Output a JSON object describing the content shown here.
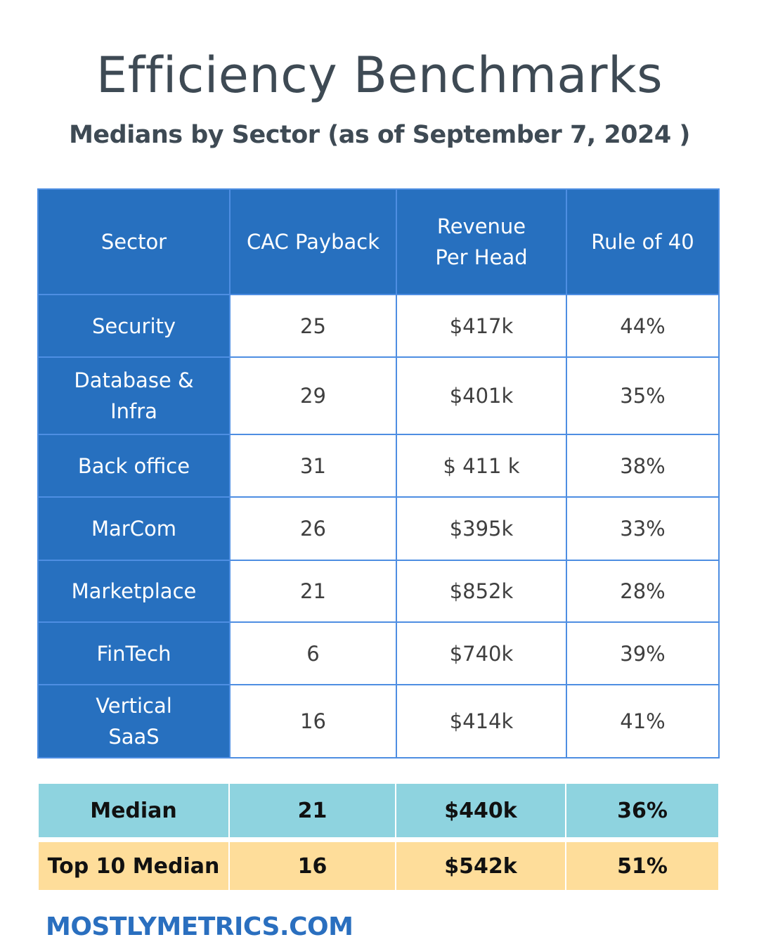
{
  "title": "Efficiency Benchmarks",
  "subtitle": "Medians by Sector (as of September 7, 2024 )",
  "footer": "MOSTLYMETRICS.COM",
  "colors": {
    "header_blue": "#2770bf",
    "grid_blue": "#4e8ee2",
    "median_row": "#8ed3df",
    "top10_row": "#fedd9a",
    "footer_text": "#2a6fbf"
  },
  "chart_data": {
    "type": "table",
    "columns": [
      "Sector",
      "CAC Payback",
      "Revenue Per Head",
      "Rule of 40"
    ],
    "rows": [
      {
        "sector": "Security",
        "cac_payback": "25",
        "revenue_per_head": "$417k",
        "rule_of_40": "44%"
      },
      {
        "sector": "Database & Infra",
        "cac_payback": "29",
        "revenue_per_head": "$401k",
        "rule_of_40": "35%"
      },
      {
        "sector": "Back office",
        "cac_payback": "31",
        "revenue_per_head": "$ 411 k",
        "rule_of_40": "38%"
      },
      {
        "sector": "MarCom",
        "cac_payback": "26",
        "revenue_per_head": "$395k",
        "rule_of_40": "33%"
      },
      {
        "sector": "Marketplace",
        "cac_payback": "21",
        "revenue_per_head": "$852k",
        "rule_of_40": "28%"
      },
      {
        "sector": "FinTech",
        "cac_payback": "6",
        "revenue_per_head": "$740k",
        "rule_of_40": "39%"
      },
      {
        "sector": "Vertical SaaS",
        "cac_payback": "16",
        "revenue_per_head": "$414k",
        "rule_of_40": "41%"
      }
    ],
    "summary": [
      {
        "label": "Median",
        "cac_payback": "21",
        "revenue_per_head": "$440k",
        "rule_of_40": "36%"
      },
      {
        "label": "Top 10 Median",
        "cac_payback": "16",
        "revenue_per_head": "$542k",
        "rule_of_40": "51%"
      }
    ]
  }
}
